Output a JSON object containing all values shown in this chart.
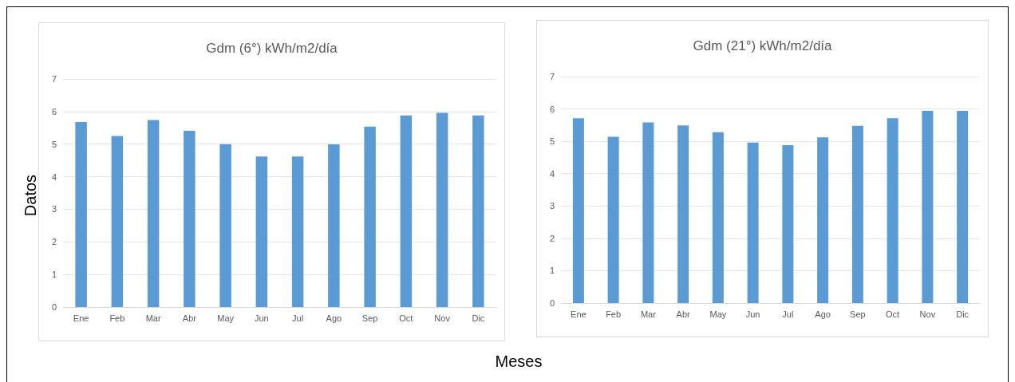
{
  "chart_data": [
    {
      "type": "bar",
      "title": "Gdm (6°) kWh/m2/día",
      "xlabel": "Meses",
      "ylabel": "Datos",
      "categories": [
        "Ene",
        "Feb",
        "Mar",
        "Abr",
        "May",
        "Jun",
        "Jul",
        "Ago",
        "Sep",
        "Oct",
        "Nov",
        "Dic"
      ],
      "values": [
        5.68,
        5.25,
        5.74,
        5.41,
        5.0,
        4.62,
        4.62,
        4.99,
        5.54,
        5.88,
        5.96,
        5.88
      ],
      "color": "#5b9bd5",
      "ylim": [
        0,
        7
      ],
      "yticks": [
        0,
        1,
        2,
        3,
        4,
        5,
        6,
        7
      ],
      "grid": "y"
    },
    {
      "type": "bar",
      "title": "Gdm (21°) kWh/m2/día",
      "categories": [
        "Ene",
        "Feb",
        "Mar",
        "Abr",
        "May",
        "Jun",
        "Jul",
        "Ago",
        "Sep",
        "Oct",
        "Nov",
        "Dic"
      ],
      "values": [
        5.71,
        5.14,
        5.58,
        5.49,
        5.28,
        4.96,
        4.88,
        5.12,
        5.48,
        5.71,
        5.94,
        5.94
      ],
      "color": "#5b9bd5",
      "ylim": [
        0,
        7
      ],
      "yticks": [
        0,
        1,
        2,
        3,
        4,
        5,
        6,
        7
      ],
      "grid": "y"
    }
  ]
}
